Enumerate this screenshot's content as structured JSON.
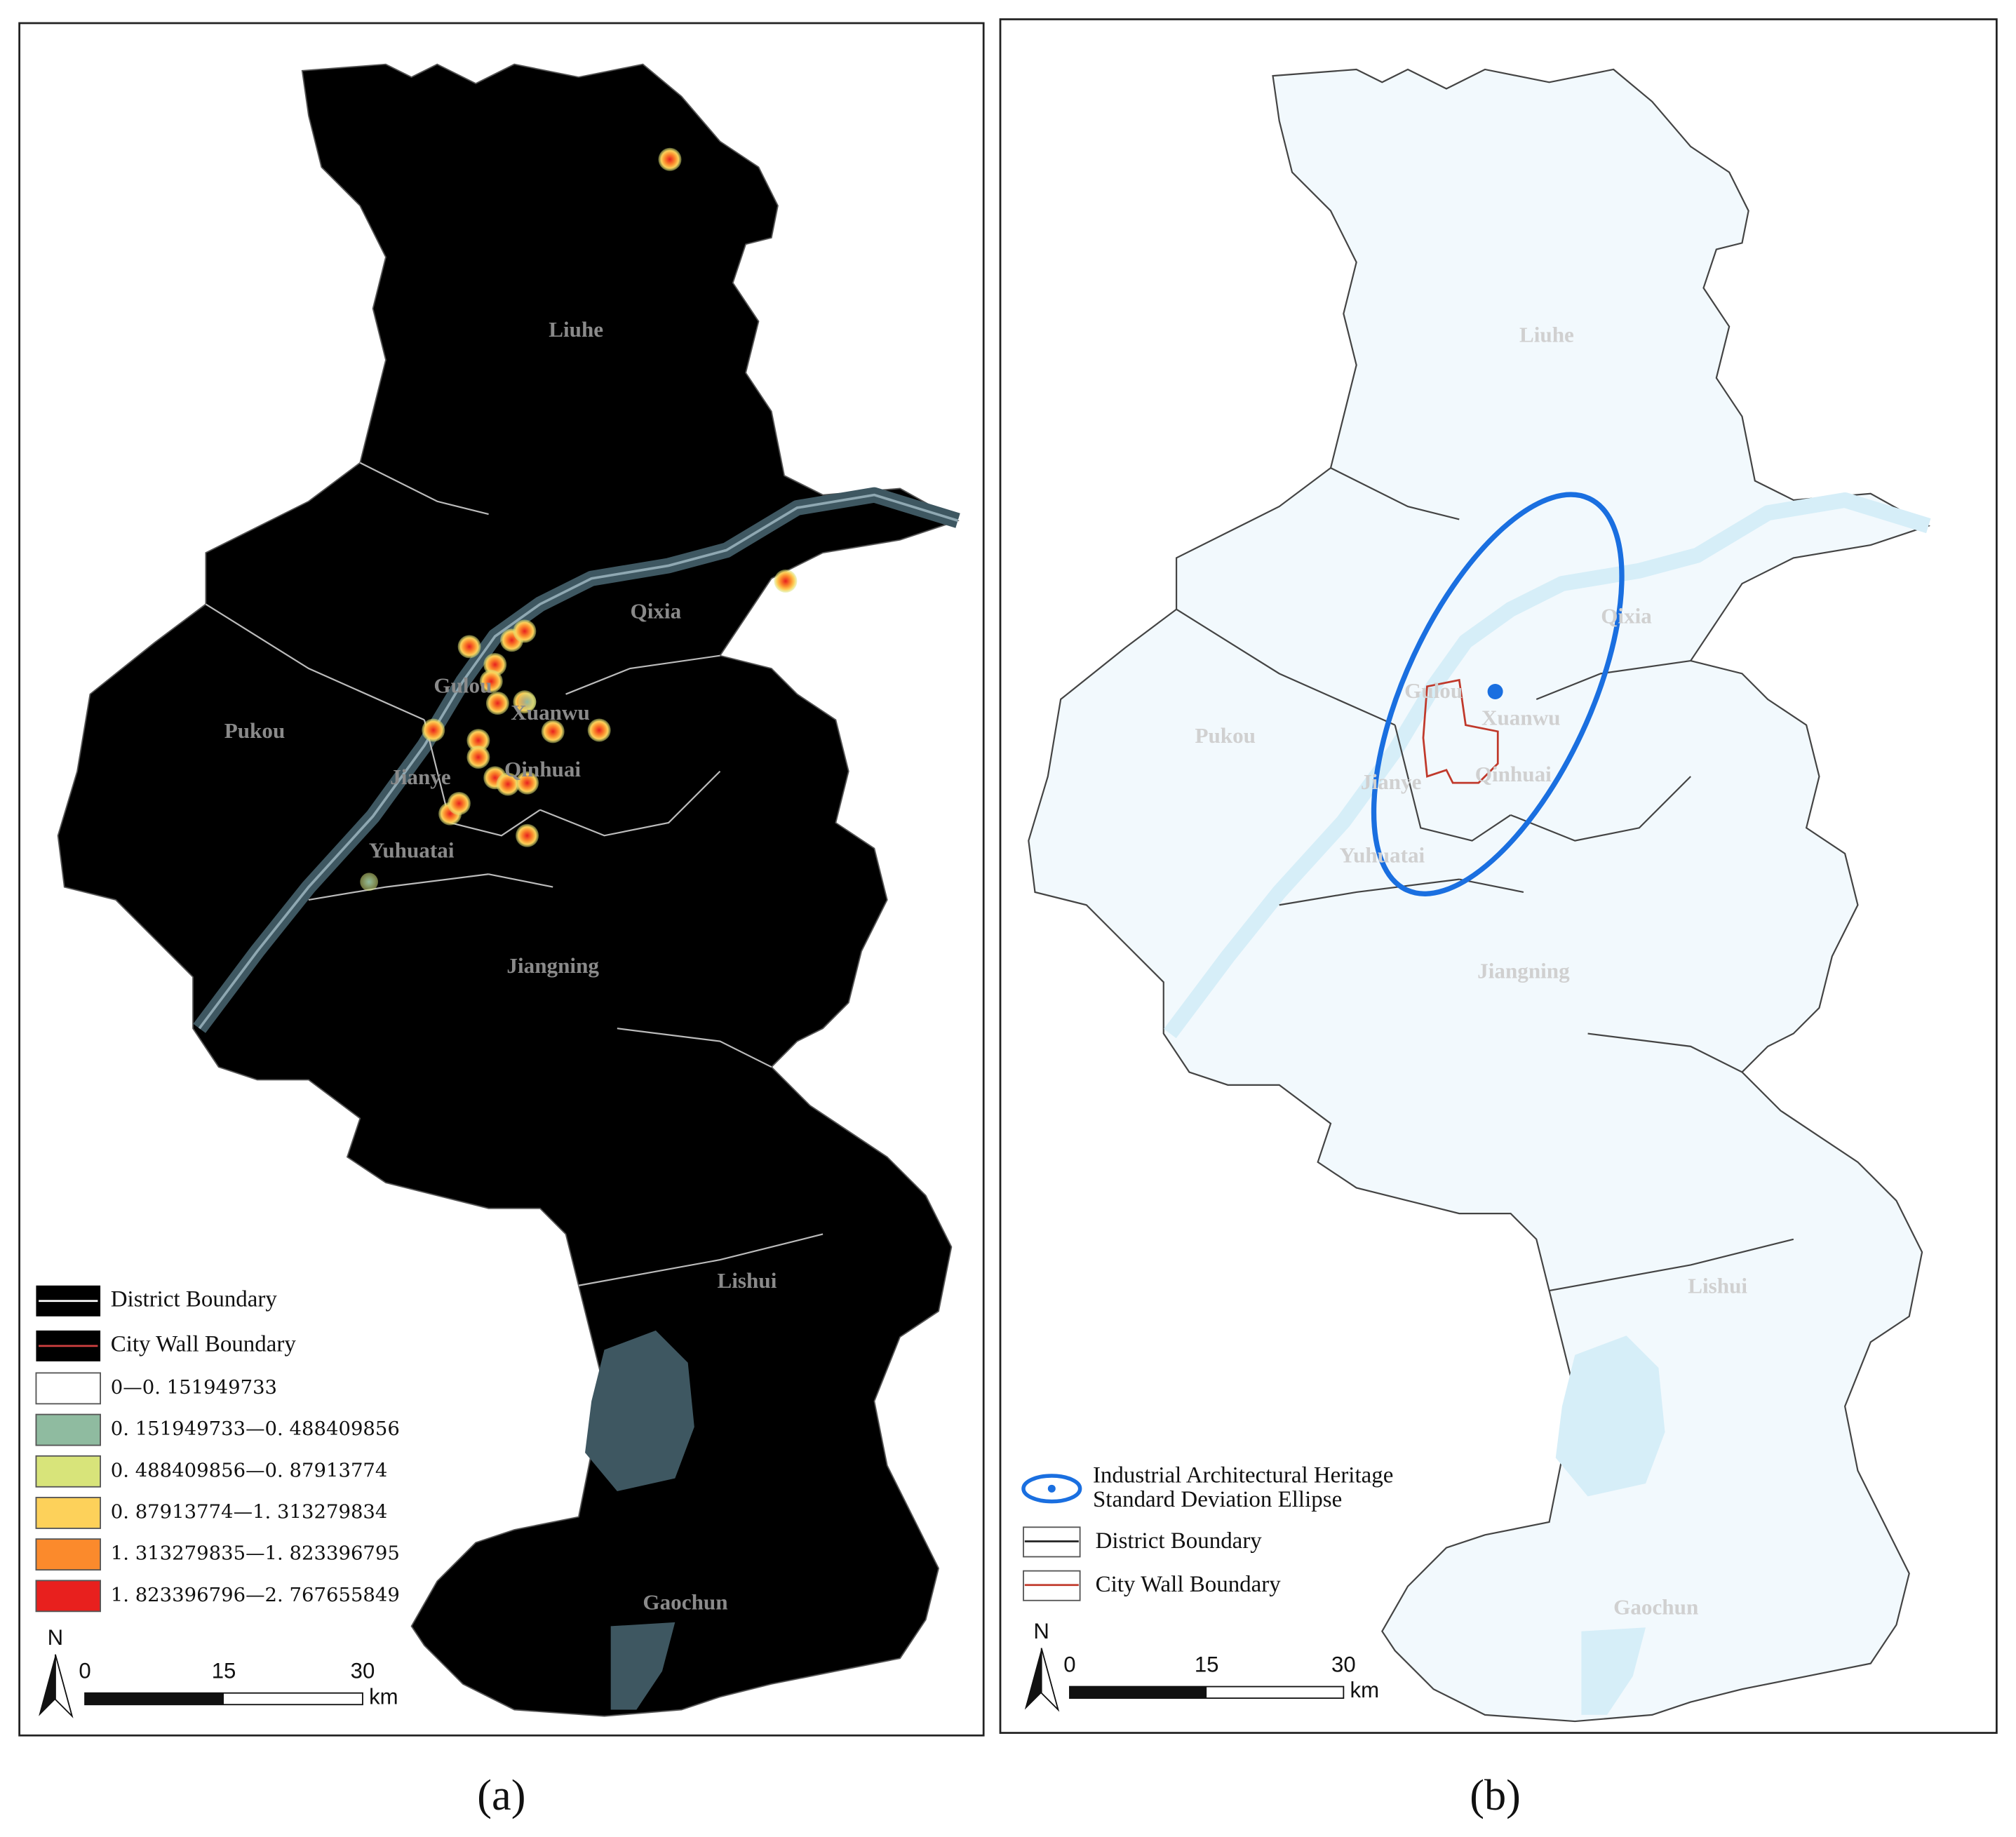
{
  "panels": [
    {
      "caption": "(a)",
      "districts": [
        "Liuhe",
        "Qixia",
        "Pukou",
        "Gulou",
        "Xuanwu",
        "Jianye",
        "Qinhuai",
        "Yuhuatai",
        "Jiangning",
        "Lishui",
        "Gaochun"
      ],
      "legend": {
        "boundaries": [
          "District Boundary",
          "City Wall Boundary"
        ],
        "classes": [
          {
            "label": "0—0. 151949733",
            "color": "#ffffff"
          },
          {
            "label": "0. 151949733—0. 488409856",
            "color": "#8fbba0"
          },
          {
            "label": "0. 488409856—0. 87913774",
            "color": "#d8e47a"
          },
          {
            "label": "0. 87913774—1. 313279834",
            "color": "#fdd15a"
          },
          {
            "label": "1. 313279835—1. 823396795",
            "color": "#fb8a2c"
          },
          {
            "label": "1. 823396796—2. 767655849",
            "color": "#e8201e"
          }
        ]
      },
      "north": "N",
      "scale_bar": {
        "ticks": [
          0,
          15,
          30
        ],
        "unit": "km"
      }
    },
    {
      "caption": "(b)",
      "districts": [
        "Liuhe",
        "Qixia",
        "Pukou",
        "Gulou",
        "Xuanwu",
        "Jianye",
        "Qinhuai",
        "Yuhuatai",
        "Jiangning",
        "Lishui",
        "Gaochun"
      ],
      "legend": {
        "ellipse": [
          "Industrial Architectural Heritage",
          "Standard Deviation Ellipse"
        ],
        "boundaries": [
          "District Boundary",
          "City Wall Boundary"
        ]
      },
      "north": "N",
      "scale_bar": {
        "ticks": [
          0,
          15,
          30
        ],
        "unit": "km"
      }
    }
  ]
}
